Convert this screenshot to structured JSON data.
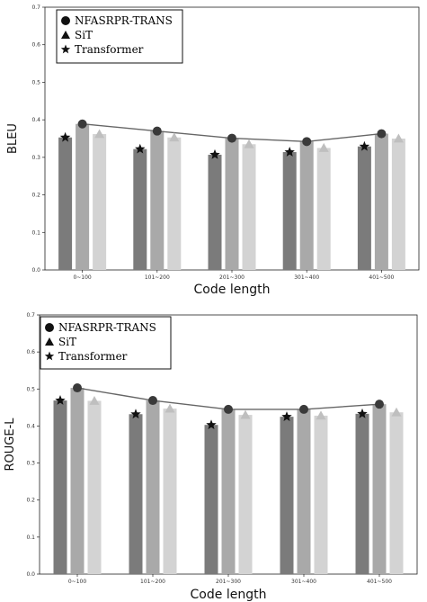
{
  "colors": {
    "bar_dark": "#7b7b7b",
    "bar_mid": "#a9a9a9",
    "bar_light": "#d3d3d3",
    "line": "#666666",
    "marker": "#3a3a3a"
  },
  "chart_data": [
    {
      "type": "bar",
      "ylabel": "BLEU",
      "xlabel": "Code length",
      "ylim": [
        0,
        0.7
      ],
      "yticks": [
        "0.0",
        "0.1",
        "0.2",
        "0.3",
        "0.4",
        "0.5",
        "0.6",
        "0.7"
      ],
      "categories": [
        "0~100",
        "101~200",
        "201~300",
        "301~400",
        "401~500"
      ],
      "legend_position": "top-left",
      "series": [
        {
          "name": "Transformer",
          "marker": "star",
          "values": [
            0.353,
            0.322,
            0.307,
            0.314,
            0.329
          ]
        },
        {
          "name": "NFASRPR-TRANS",
          "marker": "circle",
          "values": [
            0.389,
            0.37,
            0.351,
            0.342,
            0.363
          ],
          "line": true
        },
        {
          "name": "SiT",
          "marker": "triangle",
          "values": [
            0.362,
            0.353,
            0.335,
            0.325,
            0.35
          ]
        }
      ],
      "legend": [
        "NFASRPR-TRANS",
        "SiT",
        "Transformer"
      ]
    },
    {
      "type": "bar",
      "ylabel": "ROUGE-L",
      "xlabel": "Code length",
      "ylim": [
        0,
        0.7
      ],
      "yticks": [
        "0.0",
        "0.1",
        "0.2",
        "0.3",
        "0.4",
        "0.5",
        "0.6",
        "0.7"
      ],
      "categories": [
        "0~100",
        "101~200",
        "201~300",
        "301~400",
        "401~500"
      ],
      "legend_position": "top-left",
      "series": [
        {
          "name": "Transformer",
          "marker": "star",
          "values": [
            0.469,
            0.432,
            0.403,
            0.425,
            0.433
          ]
        },
        {
          "name": "NFASRPR-TRANS",
          "marker": "circle",
          "values": [
            0.503,
            0.469,
            0.445,
            0.445,
            0.459
          ],
          "line": true
        },
        {
          "name": "SiT",
          "marker": "triangle",
          "values": [
            0.468,
            0.447,
            0.43,
            0.428,
            0.437
          ]
        }
      ],
      "legend": [
        "NFASRPR-TRANS",
        "SiT",
        "Transformer"
      ]
    }
  ]
}
